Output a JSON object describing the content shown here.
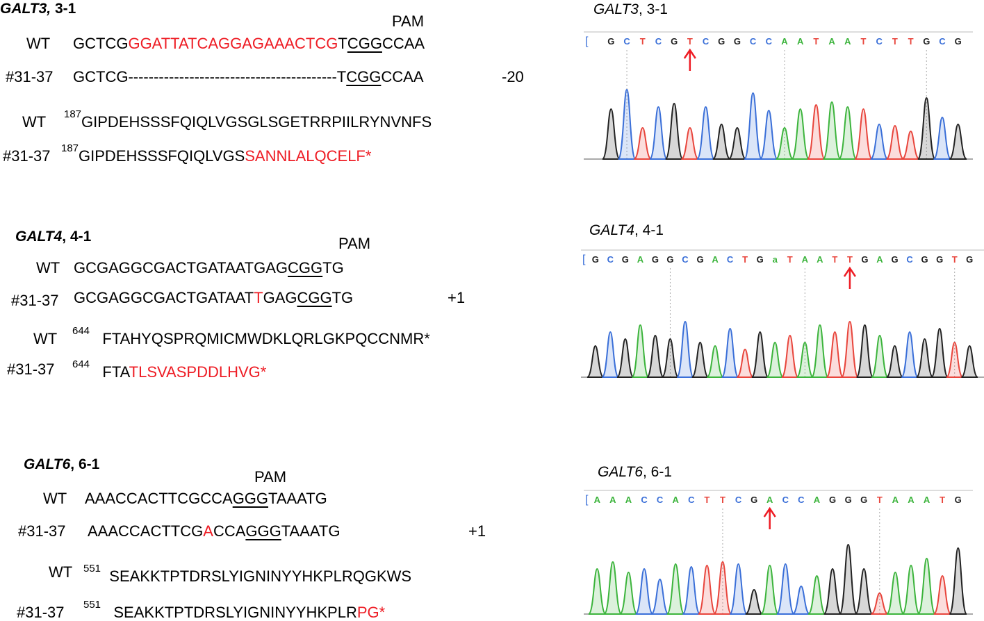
{
  "galt3": {
    "heading_gene": "GALT3,",
    "heading_clone": " 3-1",
    "pam": "PAM",
    "wt_label": "WT",
    "wt_pre": "GCTCG",
    "wt_red": "GGATTATCAGGAGAAACTCG",
    "wt_t": "T",
    "wt_pam": "CGG",
    "wt_post": "CCAA",
    "mut_label": "#31-37",
    "mut_seq": "GCTCG-----------------------------------------T",
    "mut_pam": "CGG",
    "mut_post": "CCAA",
    "indel": "-20",
    "wt_prot_label": "WT",
    "wt_prot_pos": "187",
    "wt_prot": "GIPDEHSSSFQIQLVGSGLSGETRRPIILRYNVNFS",
    "mut_prot_label": "#31-37",
    "mut_prot_pos": "187",
    "mut_prot_black": "GIPDEHSSSFQIQLVGS",
    "mut_prot_red": "SANNLALQCELF*",
    "chrom_title_gene": "GALT3",
    "chrom_title_rest": ", 3-1",
    "chrom_bases": "GCTCGTCGGCCAATAATCTTGCG"
  },
  "galt4": {
    "heading_gene": "GALT4",
    "heading_clone": ", 4-1",
    "pam": "PAM",
    "wt_label": "WT",
    "wt_pre": "GCGAGGCGACTGATAATGAG",
    "wt_pam": "CGG",
    "wt_post": "TG",
    "mut_label": "#31-37",
    "mut_pre": "GCGAGGCGACTGATAAT",
    "mut_red": "T",
    "mut_mid": "GAG",
    "mut_pam": "CGG",
    "mut_post": "TG",
    "indel": "+1",
    "wt_prot_label": "WT",
    "wt_prot_pos": "644",
    "wt_prot": "FTAHYQSPRQMICMWDKLQRLGKPQCCNMR*",
    "mut_prot_label": "#31-37",
    "mut_prot_pos": "644",
    "mut_prot_black": "FTA",
    "mut_prot_red": "TLSVASPDDLHVG*",
    "chrom_title_gene": "GALT4",
    "chrom_title_rest": ", 4-1",
    "chrom_bases": "GCGAGGCGACTGaTAATTGAGCGGTG"
  },
  "galt6": {
    "heading_gene": "GALT6",
    "heading_clone": ", 6-1",
    "pam": "PAM",
    "wt_label": "WT",
    "wt_pre": "AAACCACTTCGCCA",
    "wt_pam": "GGG",
    "wt_post": "TAAATG",
    "mut_label": "#31-37",
    "mut_pre": "AAACCACTTCG",
    "mut_red": "A",
    "mut_mid": "CCA",
    "mut_pam": "GGG",
    "mut_post": "TAAATG",
    "indel": "+1",
    "wt_prot_label": "WT",
    "wt_prot_pos": "551",
    "wt_prot": "SEAKKTPTDRSLYIGNINYYHKPLRQGKWS",
    "mut_prot_label": "#31-37",
    "mut_prot_pos": "551",
    "mut_prot_black": "SEAKKTPTDRSLYIGNINYYHKPLR",
    "mut_prot_red": "PG*",
    "chrom_title_gene": "GALT6",
    "chrom_title_rest": ", 6-1",
    "chrom_bases": "AAACCACTTCGACCAGGGTAAATG"
  },
  "colors": {
    "A": "#3cb43c",
    "C": "#3a6fd8",
    "G": "#222222",
    "T": "#e8453c",
    "mutation": "#ee1c24"
  }
}
